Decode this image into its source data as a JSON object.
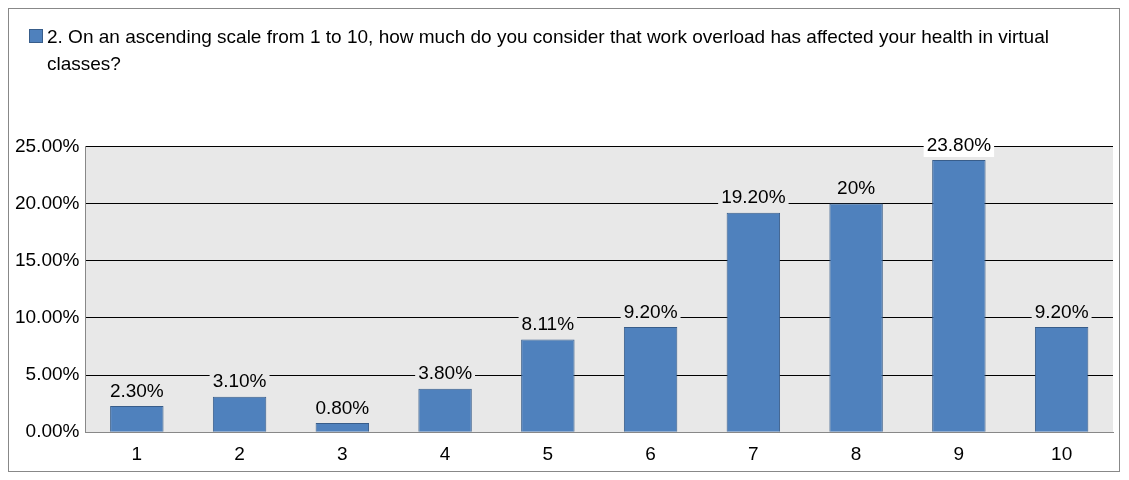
{
  "chart_data": {
    "type": "bar",
    "categories": [
      "1",
      "2",
      "3",
      "4",
      "5",
      "6",
      "7",
      "8",
      "9",
      "10"
    ],
    "series": [
      {
        "name": "2. On an ascending scale from 1 to 10, how much do you consider that work overload has affected your health in virtual classes?",
        "color": "#4f81bd",
        "values": [
          2.3,
          3.1,
          0.8,
          3.8,
          8.11,
          9.2,
          19.2,
          20,
          23.8,
          9.2
        ],
        "value_labels": [
          "2.30%",
          "3.10%",
          "0.80%",
          "3.80%",
          "8.11%",
          "9.20%",
          "19.20%",
          "20%",
          "23.80%",
          "9.20%"
        ]
      }
    ],
    "ylim": [
      0,
      25
    ],
    "yticks": [
      {
        "value": 0,
        "label": "0.00%"
      },
      {
        "value": 5,
        "label": "5.00%"
      },
      {
        "value": 10,
        "label": "10.00%"
      },
      {
        "value": 15,
        "label": "15.00%"
      },
      {
        "value": 20,
        "label": "20.00%"
      },
      {
        "value": 25,
        "label": "25.00%"
      }
    ],
    "grid": "y",
    "legend": "top"
  }
}
